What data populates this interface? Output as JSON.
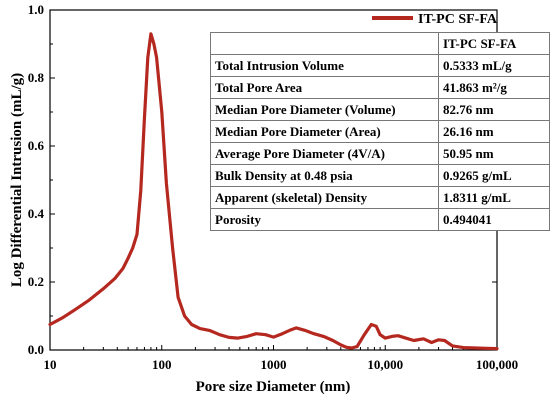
{
  "chart_data": {
    "type": "line",
    "xlabel": "Pore size Diameter (nm)",
    "ylabel": "Log Differential Intrusion (mL/g)",
    "x_scale": "log",
    "xlim": [
      10,
      100000
    ],
    "ylim": [
      0,
      1.0
    ],
    "x_ticks": [
      10,
      100,
      1000,
      10000,
      100000
    ],
    "x_tick_labels": [
      "10",
      "100",
      "1000",
      "10,000",
      "100,000"
    ],
    "y_ticks": [
      0,
      0.2,
      0.4,
      0.6,
      0.8,
      1.0
    ],
    "y_tick_labels": [
      "0.0",
      "0.2",
      "0.4",
      "0.6",
      "0.8",
      "1.0"
    ],
    "grid": false,
    "legend_position": "top-right",
    "series": [
      {
        "name": "IT-PC SF-FA",
        "color": "#b5281f",
        "x": [
          10,
          13,
          17,
          22,
          30,
          38,
          45,
          50,
          55,
          60,
          65,
          70,
          75,
          80,
          85,
          90,
          100,
          110,
          125,
          140,
          160,
          185,
          220,
          270,
          330,
          400,
          480,
          580,
          700,
          850,
          1000,
          1200,
          1400,
          1600,
          1900,
          2300,
          2800,
          3400,
          4000,
          4500,
          5000,
          5600,
          6500,
          7500,
          8300,
          9000,
          10000,
          11500,
          13000,
          15000,
          18000,
          22000,
          26000,
          30000,
          34000,
          40000,
          50000,
          65000,
          80000,
          100000
        ],
        "y": [
          0.075,
          0.095,
          0.12,
          0.145,
          0.18,
          0.21,
          0.24,
          0.27,
          0.3,
          0.34,
          0.47,
          0.68,
          0.86,
          0.93,
          0.9,
          0.86,
          0.7,
          0.49,
          0.3,
          0.155,
          0.1,
          0.075,
          0.063,
          0.057,
          0.045,
          0.037,
          0.035,
          0.04,
          0.048,
          0.045,
          0.038,
          0.048,
          0.058,
          0.065,
          0.058,
          0.048,
          0.04,
          0.028,
          0.015,
          0.008,
          0.006,
          0.01,
          0.045,
          0.075,
          0.07,
          0.045,
          0.035,
          0.04,
          0.042,
          0.036,
          0.028,
          0.033,
          0.022,
          0.03,
          0.028,
          0.012,
          0.007,
          0.006,
          0.005,
          0.004
        ]
      }
    ]
  },
  "table": {
    "header": [
      "",
      "IT-PC SF-FA"
    ],
    "rows": [
      [
        "Total Intrusion Volume",
        "0.5333 mL/g"
      ],
      [
        "Total Pore Area",
        "41.863 m²/g"
      ],
      [
        "Median Pore Diameter (Volume)",
        "82.76 nm"
      ],
      [
        "Median Pore Diameter (Area)",
        "26.16 nm"
      ],
      [
        "Average Pore Diameter (4V/A)",
        "50.95 nm"
      ],
      [
        "Bulk Density at 0.48 psia",
        "0.9265 g/mL"
      ],
      [
        "Apparent (skeletal) Density",
        "1.8311 g/mL"
      ],
      [
        "Porosity",
        "0.494041"
      ]
    ]
  }
}
